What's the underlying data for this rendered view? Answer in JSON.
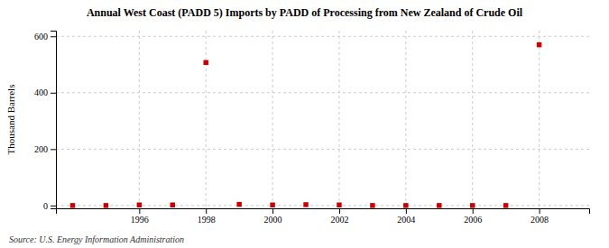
{
  "chart_data": {
    "type": "scatter",
    "title": "Annual West Coast (PADD 5) Imports by PADD of Processing from New Zealand of Crude Oil",
    "y_label": "Thousand Barrels",
    "annotations": [
      "Source: U.S. Energy Information Administration"
    ],
    "x": [
      1994,
      1995,
      1996,
      1997,
      1998,
      1999,
      2000,
      2001,
      2002,
      2003,
      2004,
      2005,
      2006,
      2007,
      2008
    ],
    "values": [
      0,
      0,
      2,
      2,
      507,
      4,
      2,
      3,
      2,
      0,
      0,
      0,
      0,
      0,
      570
    ],
    "color": "#cc0000",
    "marker": "square",
    "xlim": [
      1993.5,
      2009.5
    ],
    "ylim": [
      -10,
      620
    ],
    "xticks": [
      1996,
      1998,
      2000,
      2002,
      2004,
      2006,
      2008
    ],
    "yticks": [
      0,
      200,
      400,
      600
    ],
    "grid": true
  }
}
